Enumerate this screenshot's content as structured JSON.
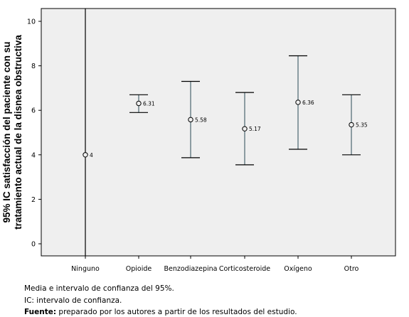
{
  "chart_data": {
    "type": "errorbar",
    "ylabel_line1": "95% IC satisfacción del paciente con su",
    "ylabel_line2": "tratamiento actual de la disnea obstructiva",
    "ylim": [
      0,
      10
    ],
    "yticks": [
      "0",
      "2",
      "4",
      "6",
      "8",
      "10"
    ],
    "grid": false,
    "categories": [
      "Ninguno",
      "Opioide",
      "Benzodiazepina",
      "Corticosteroide",
      "Oxígeno",
      "Otro"
    ],
    "means": [
      4,
      6.31,
      5.58,
      5.17,
      6.36,
      5.35
    ],
    "mean_labels": [
      "4",
      "6.31",
      "5.58",
      "5.17",
      "6.36",
      "5.35"
    ],
    "ci_lower": [
      -100,
      5.9,
      3.87,
      3.55,
      4.25,
      4.0
    ],
    "ci_upper": [
      100,
      6.7,
      7.3,
      6.8,
      8.45,
      6.7
    ],
    "colors": {
      "plot_bg": "#efefef",
      "ci_bar": "#4a6670",
      "frame": "#000000"
    }
  },
  "caption": {
    "line1": "Media e intervalo de confianza del 95%.",
    "line2": "IC: intervalo de confianza.",
    "source_label": "Fuente:",
    "source_text": " preparado por los autores a partir de los resultados del estudio."
  }
}
